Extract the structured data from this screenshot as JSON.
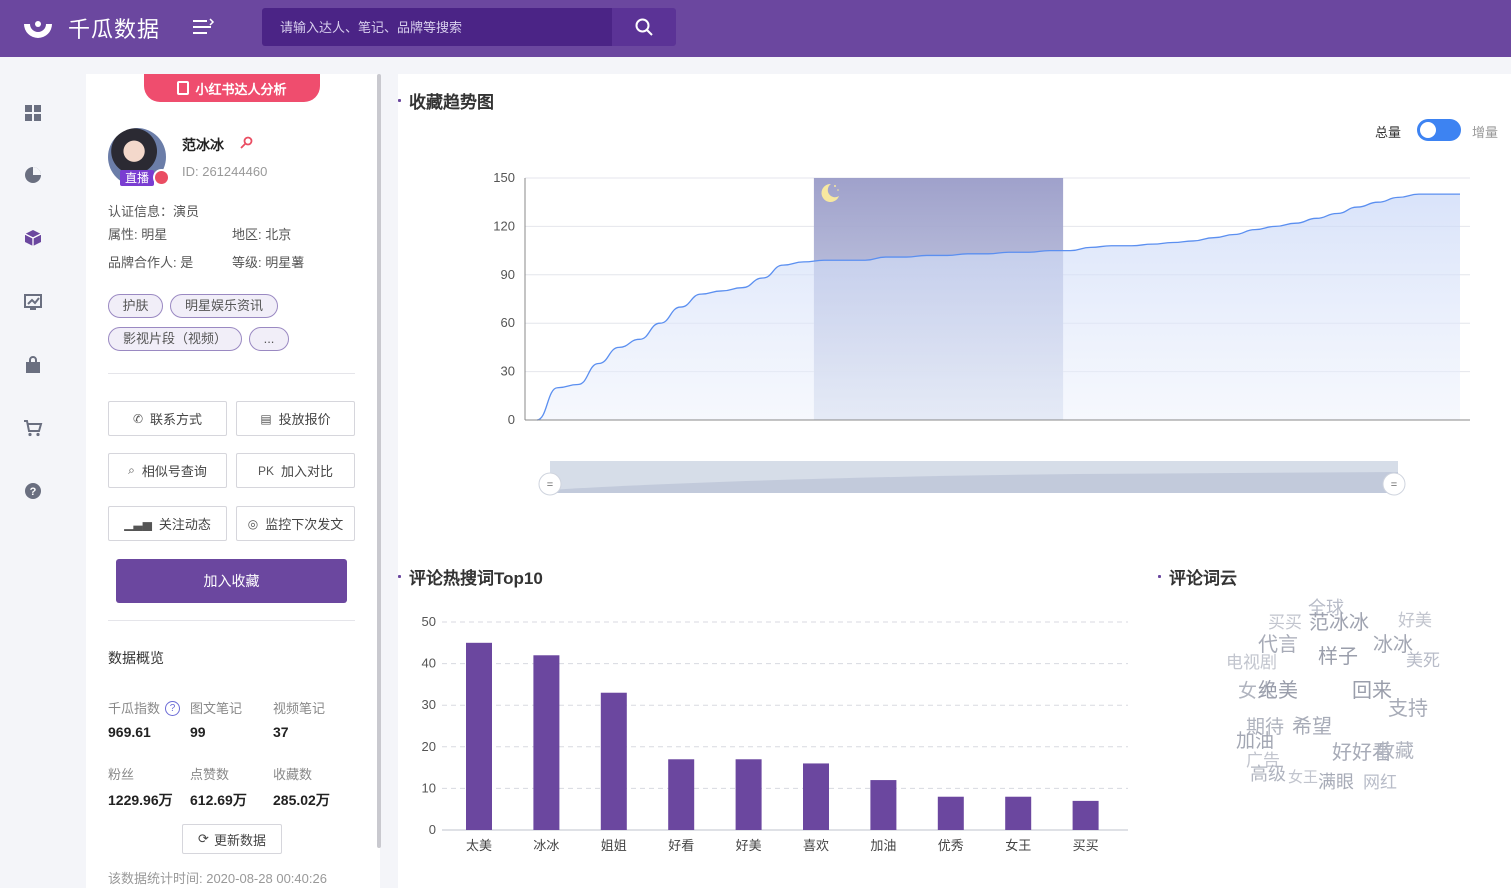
{
  "header": {
    "brand": "千瓜数据",
    "search_placeholder": "请输入达人、笔记、品牌等搜索",
    "brand_color": "#6b479f"
  },
  "nav_icons": [
    "grid-icon",
    "pie-chart-icon",
    "box-icon",
    "trend-chart-icon",
    "shopping-bag-icon",
    "cart-icon",
    "help-chat-icon"
  ],
  "profile": {
    "badge": "小红书达人分析",
    "name": "范冰冰",
    "id": "ID:  261244460",
    "live_tag": "直播",
    "cert": "认证信息：演员",
    "attr": "属性: 明星",
    "region": "地区: 北京",
    "brand_partner": "品牌合作人: 是",
    "level": "等级: 明星薯",
    "tags": [
      "护肤",
      "明星娱乐资讯",
      "影视片段（视频）",
      "..."
    ],
    "buttons": {
      "contact": "联系方式",
      "quote": "投放报价",
      "similar": "相似号查询",
      "compare_prefix": "PK",
      "compare": "加入对比",
      "follow": "关注动态",
      "monitor": "监控下次发文"
    },
    "favorite": "加入收藏",
    "overview_title": "数据概览",
    "stats": [
      {
        "label": "千瓜指数",
        "value": "969.61"
      },
      {
        "label": "图文笔记",
        "value": "99"
      },
      {
        "label": "视频笔记",
        "value": "37"
      },
      {
        "label": "粉丝",
        "value": "1229.96万"
      },
      {
        "label": "点赞数",
        "value": "612.69万"
      },
      {
        "label": "收藏数",
        "value": "285.02万"
      }
    ],
    "refresh": "更新数据",
    "stat_time": "该数据统计时间: 2020-08-28 00:40:26"
  },
  "trend": {
    "title": "收藏趋势图",
    "toggle_total": "总量",
    "toggle_incr": "增量"
  },
  "top10": {
    "title": "评论热搜词Top10"
  },
  "wordcloud": {
    "title": "评论词云",
    "words": [
      "全球",
      "买买",
      "范冰冰",
      "好美",
      "代言",
      "冰冰",
      "样子",
      "电视剧",
      "美死",
      "女人",
      "绝美",
      "回来",
      "支持",
      "期待",
      "希望",
      "加油",
      "好好看",
      "收藏",
      "广告",
      "高级",
      "女王",
      "满眼",
      "网红"
    ]
  },
  "chart_data": [
    {
      "type": "area",
      "title": "收藏趋势图",
      "ylim": [
        0,
        150
      ],
      "yticks": [
        0,
        30,
        60,
        90,
        120,
        150
      ],
      "values": [
        0,
        20,
        22,
        35,
        45,
        50,
        60,
        70,
        78,
        80,
        82,
        88,
        96,
        98,
        99,
        99,
        99,
        101,
        101,
        102,
        102,
        103,
        103,
        104,
        104,
        105,
        105,
        107,
        108,
        108,
        109,
        110,
        111,
        113,
        115,
        118,
        120,
        122,
        125,
        128,
        132,
        135,
        138,
        140,
        140,
        140
      ],
      "highlight_range": [
        0.3,
        0.57
      ],
      "grid": true
    },
    {
      "type": "bar",
      "title": "评论热搜词Top10",
      "categories": [
        "太美",
        "冰冰",
        "姐姐",
        "好看",
        "好美",
        "喜欢",
        "加油",
        "优秀",
        "女王",
        "买买"
      ],
      "values": [
        45,
        42,
        33,
        17,
        17,
        16,
        12,
        8,
        8,
        7
      ],
      "ylim": [
        0,
        50
      ],
      "yticks": [
        0,
        10,
        20,
        30,
        40,
        50
      ],
      "color": "#6b479f",
      "grid": true
    }
  ]
}
